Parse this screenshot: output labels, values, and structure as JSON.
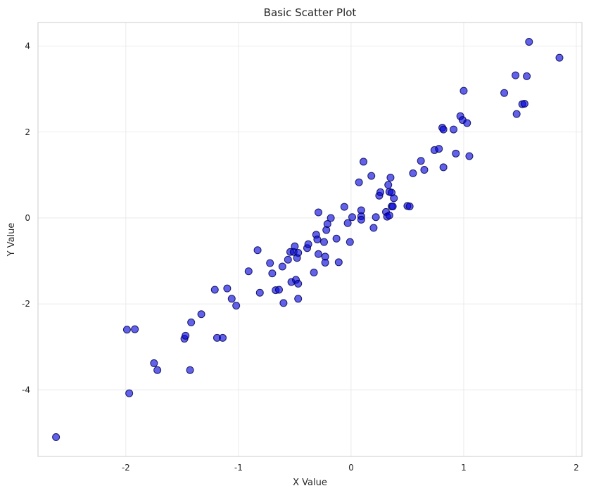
{
  "chart_data": {
    "type": "scatter",
    "title": "Basic Scatter Plot",
    "xlabel": "X Value",
    "ylabel": "Y Value",
    "xlim": [
      -2.78,
      2.05
    ],
    "ylim": [
      -5.55,
      4.55
    ],
    "xticks": [
      -2,
      -1,
      0,
      1,
      2
    ],
    "yticks": [
      -4,
      -2,
      0,
      2,
      4
    ],
    "grid": true,
    "marker_color": "#0000dd",
    "marker_edge": "#00004f",
    "marker_alpha": 0.62,
    "points": [
      [
        -2.62,
        -5.1
      ],
      [
        -1.97,
        -4.08
      ],
      [
        -1.99,
        -2.6
      ],
      [
        -1.92,
        -2.59
      ],
      [
        -1.75,
        -3.38
      ],
      [
        -1.72,
        -3.54
      ],
      [
        -1.48,
        -2.81
      ],
      [
        -1.47,
        -2.74
      ],
      [
        -1.43,
        -3.54
      ],
      [
        -1.42,
        -2.43
      ],
      [
        -1.33,
        -2.24
      ],
      [
        -1.21,
        -1.67
      ],
      [
        -1.19,
        -2.79
      ],
      [
        -1.14,
        -2.79
      ],
      [
        -1.1,
        -1.64
      ],
      [
        -1.06,
        -1.88
      ],
      [
        -1.02,
        -2.04
      ],
      [
        -0.91,
        -1.24
      ],
      [
        -0.83,
        -0.75
      ],
      [
        -0.81,
        -1.74
      ],
      [
        -0.72,
        -1.05
      ],
      [
        -0.7,
        -1.29
      ],
      [
        -0.67,
        -1.68
      ],
      [
        -0.64,
        -1.67
      ],
      [
        -0.61,
        -1.13
      ],
      [
        -0.6,
        -1.98
      ],
      [
        -0.56,
        -0.97
      ],
      [
        -0.54,
        -0.79
      ],
      [
        -0.53,
        -1.49
      ],
      [
        -0.51,
        -0.79
      ],
      [
        -0.5,
        -0.66
      ],
      [
        -0.49,
        -1.44
      ],
      [
        -0.48,
        -0.93
      ],
      [
        -0.47,
        -0.81
      ],
      [
        -0.47,
        -1.53
      ],
      [
        -0.47,
        -1.88
      ],
      [
        -0.39,
        -0.7
      ],
      [
        -0.38,
        -0.61
      ],
      [
        -0.33,
        -1.27
      ],
      [
        -0.31,
        -0.39
      ],
      [
        -0.3,
        -0.5
      ],
      [
        -0.29,
        -0.84
      ],
      [
        -0.29,
        0.13
      ],
      [
        -0.24,
        -0.56
      ],
      [
        -0.23,
        -0.9
      ],
      [
        -0.23,
        -1.04
      ],
      [
        -0.22,
        -0.28
      ],
      [
        -0.21,
        -0.14
      ],
      [
        -0.18,
        0.0
      ],
      [
        -0.13,
        -0.48
      ],
      [
        -0.11,
        -1.03
      ],
      [
        -0.06,
        0.26
      ],
      [
        -0.03,
        -0.12
      ],
      [
        -0.01,
        -0.56
      ],
      [
        0.01,
        0.02
      ],
      [
        0.07,
        0.83
      ],
      [
        0.09,
        0.18
      ],
      [
        0.09,
        0.04
      ],
      [
        0.09,
        -0.04
      ],
      [
        0.11,
        1.31
      ],
      [
        0.18,
        0.98
      ],
      [
        0.2,
        -0.23
      ],
      [
        0.22,
        0.02
      ],
      [
        0.25,
        0.52
      ],
      [
        0.26,
        0.6
      ],
      [
        0.31,
        0.14
      ],
      [
        0.32,
        0.03
      ],
      [
        0.33,
        0.77
      ],
      [
        0.34,
        0.06
      ],
      [
        0.34,
        0.61
      ],
      [
        0.35,
        0.94
      ],
      [
        0.36,
        0.27
      ],
      [
        0.36,
        0.59
      ],
      [
        0.37,
        0.27
      ],
      [
        0.38,
        0.46
      ],
      [
        0.5,
        0.28
      ],
      [
        0.52,
        0.27
      ],
      [
        0.55,
        1.04
      ],
      [
        0.62,
        1.33
      ],
      [
        0.65,
        1.12
      ],
      [
        0.74,
        1.58
      ],
      [
        0.78,
        1.61
      ],
      [
        0.81,
        2.1
      ],
      [
        0.82,
        2.06
      ],
      [
        0.82,
        1.18
      ],
      [
        0.91,
        2.06
      ],
      [
        0.93,
        1.5
      ],
      [
        0.97,
        2.37
      ],
      [
        0.99,
        2.28
      ],
      [
        1.0,
        2.96
      ],
      [
        1.03,
        2.21
      ],
      [
        1.05,
        1.44
      ],
      [
        1.36,
        2.91
      ],
      [
        1.46,
        3.32
      ],
      [
        1.47,
        2.42
      ],
      [
        1.52,
        2.65
      ],
      [
        1.54,
        2.66
      ],
      [
        1.56,
        3.3
      ],
      [
        1.58,
        4.1
      ],
      [
        1.85,
        3.73
      ]
    ]
  }
}
